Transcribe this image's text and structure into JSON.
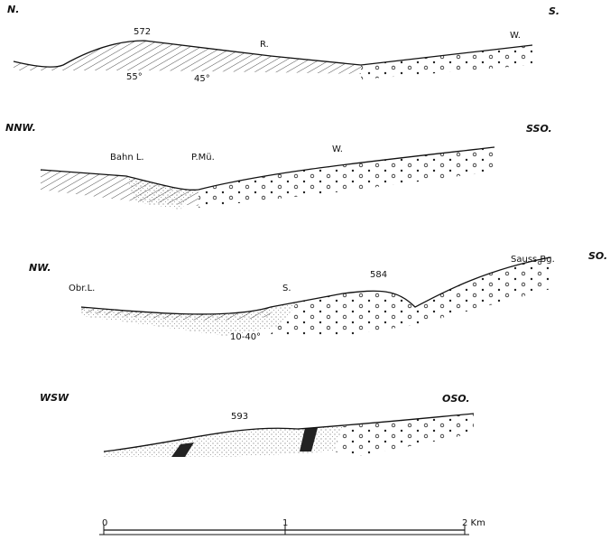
{
  "profiles": [
    {
      "left": "N.",
      "right": "S.",
      "labels": [
        "572",
        "R.",
        "W.",
        "55°",
        "45°"
      ]
    },
    {
      "left": "NNW.",
      "right": "SSO.",
      "labels": [
        "Bahn L.",
        "P.Mü.",
        "W."
      ]
    },
    {
      "left": "NW.",
      "right": "SO.",
      "labels": [
        "Obr.L.",
        "S.",
        "584",
        "Sauss Bg.",
        "10-40°"
      ]
    },
    {
      "left": "WSW",
      "right": "OSO.",
      "labels": [
        "593"
      ]
    }
  ],
  "scale": {
    "ticks": [
      "0",
      "1",
      "2 Km"
    ]
  }
}
